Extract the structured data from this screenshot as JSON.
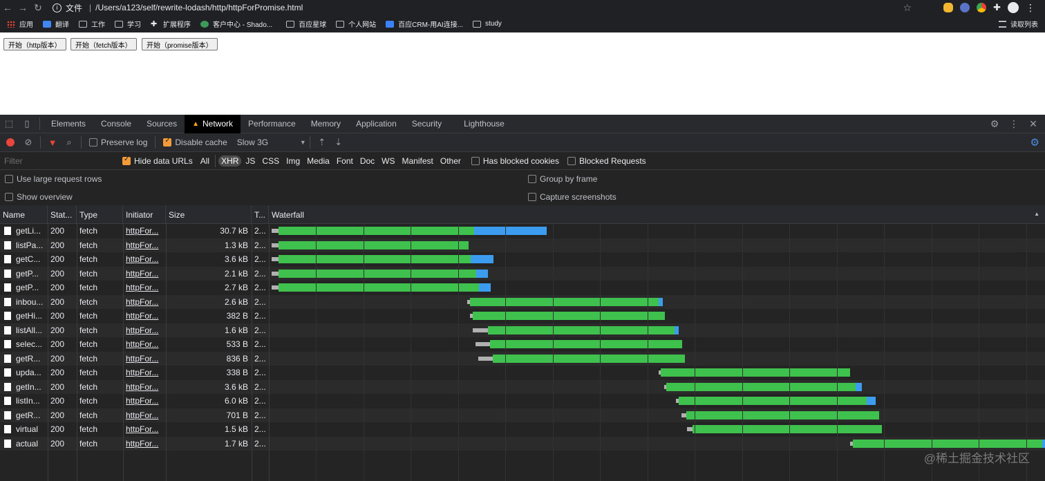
{
  "browser": {
    "scheme_label": "文件",
    "url": "/Users/a123/self/rewrite-lodash/http/httpForPromise.html"
  },
  "bookmarks": [
    {
      "label": "应用",
      "icon": "apps-grid-icon"
    },
    {
      "label": "翻译",
      "icon": "translate-icon"
    },
    {
      "label": "工作",
      "icon": "folder-icon"
    },
    {
      "label": "学习",
      "icon": "folder-icon"
    },
    {
      "label": "扩展程序",
      "icon": "puzzle-icon"
    },
    {
      "label": "客户中心 - Shado...",
      "icon": "site-icon"
    },
    {
      "label": "百应星球",
      "icon": "folder-icon"
    },
    {
      "label": "个人网站",
      "icon": "folder-icon"
    },
    {
      "label": "百应CRM-用AI连接...",
      "icon": "site-icon"
    },
    {
      "label": "study",
      "icon": "folder-icon"
    }
  ],
  "reading_list": "读取列表",
  "page_buttons": [
    "开始（http版本）",
    "开始（fetch版本）",
    "开始（promise版本）"
  ],
  "devtools": {
    "tabs": [
      "Elements",
      "Console",
      "Sources",
      "Network",
      "Performance",
      "Memory",
      "Application",
      "Security",
      "Lighthouse"
    ],
    "active_tab": "Network",
    "toolbar": {
      "preserve_log": "Preserve log",
      "disable_cache": "Disable cache",
      "throttle": "Slow 3G"
    },
    "filter": {
      "placeholder": "Filter",
      "hide_data_urls": "Hide data URLs",
      "types": [
        "All",
        "XHR",
        "JS",
        "CSS",
        "Img",
        "Media",
        "Font",
        "Doc",
        "WS",
        "Manifest",
        "Other"
      ],
      "active_type": "XHR",
      "has_blocked_cookies": "Has blocked cookies",
      "blocked_requests": "Blocked Requests"
    },
    "settings": {
      "large_rows": "Use large request rows",
      "group_by_frame": "Group by frame",
      "show_overview": "Show overview",
      "capture_screenshots": "Capture screenshots"
    },
    "columns": [
      "Name",
      "Stat...",
      "Type",
      "Initiator",
      "Size",
      "T...",
      "Waterfall"
    ],
    "rows": [
      {
        "name": "getLi...",
        "status": "200",
        "type": "fetch",
        "initiator": "httpFor...",
        "size": "30.7 kB",
        "time": "2...",
        "wait": [
          393,
          403
        ],
        "green": [
          403,
          686
        ],
        "blue": [
          686,
          791
        ]
      },
      {
        "name": "listPa...",
        "status": "200",
        "type": "fetch",
        "initiator": "httpFor...",
        "size": "1.3 kB",
        "time": "2...",
        "wait": [
          393,
          403
        ],
        "green": [
          403,
          678
        ],
        "blue": [
          678,
          678
        ]
      },
      {
        "name": "getC...",
        "status": "200",
        "type": "fetch",
        "initiator": "httpFor...",
        "size": "3.6 kB",
        "time": "2...",
        "wait": [
          393,
          403
        ],
        "green": [
          403,
          681
        ],
        "blue": [
          681,
          714
        ]
      },
      {
        "name": "getP...",
        "status": "200",
        "type": "fetch",
        "initiator": "httpFor...",
        "size": "2.1 kB",
        "time": "2...",
        "wait": [
          393,
          403
        ],
        "green": [
          403,
          689
        ],
        "blue": [
          689,
          706
        ]
      },
      {
        "name": "getP...",
        "status": "200",
        "type": "fetch",
        "initiator": "httpFor...",
        "size": "2.7 kB",
        "time": "2...",
        "wait": [
          393,
          403
        ],
        "green": [
          403,
          693
        ],
        "blue": [
          693,
          710
        ]
      },
      {
        "name": "inbou...",
        "status": "200",
        "type": "fetch",
        "initiator": "httpFor...",
        "size": "2.6 kB",
        "time": "2...",
        "wait": [
          676,
          680
        ],
        "green": [
          680,
          953
        ],
        "blue": [
          953,
          959
        ]
      },
      {
        "name": "getHi...",
        "status": "200",
        "type": "fetch",
        "initiator": "httpFor...",
        "size": "382 B",
        "time": "2...",
        "wait": [
          680,
          684
        ],
        "green": [
          684,
          962
        ],
        "blue": [
          962,
          962
        ]
      },
      {
        "name": "listAll...",
        "status": "200",
        "type": "fetch",
        "initiator": "httpFor...",
        "size": "1.6 kB",
        "time": "2...",
        "wait": [
          684,
          706
        ],
        "green": [
          706,
          976
        ],
        "blue": [
          976,
          982
        ]
      },
      {
        "name": "selec...",
        "status": "200",
        "type": "fetch",
        "initiator": "httpFor...",
        "size": "533 B",
        "time": "2...",
        "wait": [
          688,
          709
        ],
        "green": [
          709,
          987
        ],
        "blue": [
          987,
          987
        ]
      },
      {
        "name": "getR...",
        "status": "200",
        "type": "fetch",
        "initiator": "httpFor...",
        "size": "836 B",
        "time": "2...",
        "wait": [
          692,
          713
        ],
        "green": [
          713,
          991
        ],
        "blue": [
          991,
          991
        ]
      },
      {
        "name": "upda...",
        "status": "200",
        "type": "fetch",
        "initiator": "httpFor...",
        "size": "338 B",
        "time": "2...",
        "wait": [
          953,
          956
        ],
        "green": [
          956,
          1230
        ],
        "blue": [
          1230,
          1230
        ]
      },
      {
        "name": "getIn...",
        "status": "200",
        "type": "fetch",
        "initiator": "httpFor...",
        "size": "3.6 kB",
        "time": "2...",
        "wait": [
          961,
          964
        ],
        "green": [
          964,
          1238
        ],
        "blue": [
          1238,
          1247
        ]
      },
      {
        "name": "listIn...",
        "status": "200",
        "type": "fetch",
        "initiator": "httpFor...",
        "size": "6.0 kB",
        "time": "2...",
        "wait": [
          978,
          982
        ],
        "green": [
          982,
          1254
        ],
        "blue": [
          1254,
          1267
        ]
      },
      {
        "name": "getR...",
        "status": "200",
        "type": "fetch",
        "initiator": "httpFor...",
        "size": "701 B",
        "time": "2...",
        "wait": [
          986,
          993
        ],
        "green": [
          993,
          1272
        ],
        "blue": [
          1272,
          1272
        ]
      },
      {
        "name": "virtual",
        "status": "200",
        "type": "fetch",
        "initiator": "httpFor...",
        "size": "1.5 kB",
        "time": "2...",
        "wait": [
          994,
          1002
        ],
        "green": [
          1002,
          1276
        ],
        "blue": [
          1276,
          1276
        ]
      },
      {
        "name": "actual",
        "status": "200",
        "type": "fetch",
        "initiator": "httpFor...",
        "size": "1.7 kB",
        "time": "2...",
        "wait": [
          1230,
          1234
        ],
        "green": [
          1234,
          1508
        ],
        "blue": [
          1508,
          1512
        ]
      }
    ]
  },
  "watermark": "@稀土掘金技术社区",
  "colors": {
    "waiting": "#3fc24d",
    "download": "#3b9cf0",
    "queue": "#b0b0b0",
    "record": "#e8453c",
    "warning": "#f9ab00"
  }
}
